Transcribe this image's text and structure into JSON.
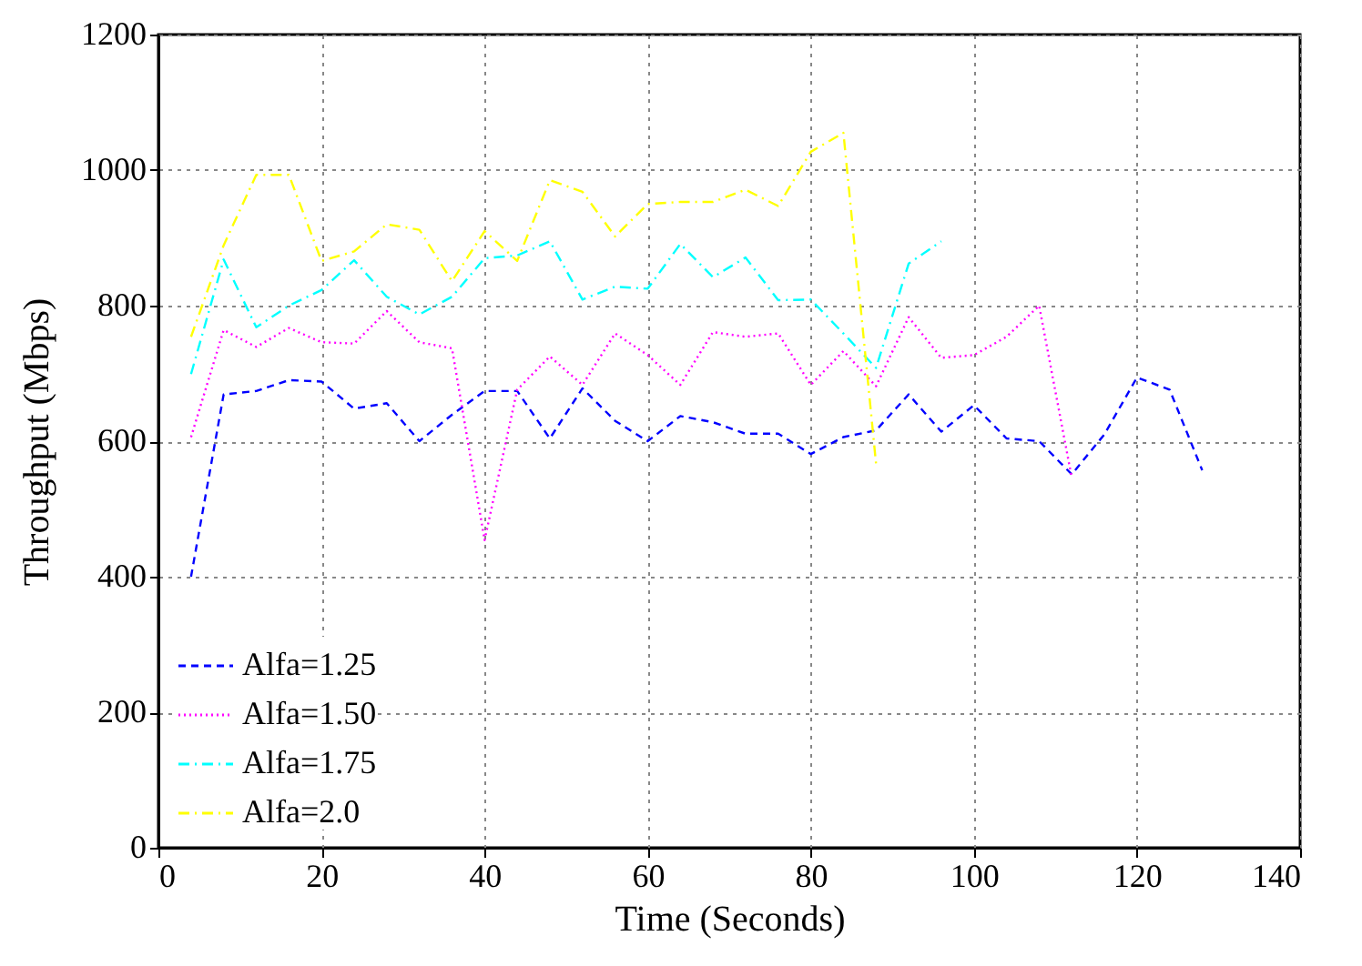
{
  "chart_data": {
    "type": "line",
    "xlabel": "Time (Seconds)",
    "ylabel": "Throughput (Mbps)",
    "xlim": [
      0,
      140
    ],
    "xticks": [
      0,
      20,
      40,
      60,
      80,
      100,
      120,
      140
    ],
    "ylim": [
      0,
      1200
    ],
    "yticks": [
      0,
      200,
      400,
      600,
      800,
      1000,
      1200
    ],
    "grid": true,
    "legend": "bottom left",
    "marker": "none",
    "series": [
      {
        "name": "Alfa=1.25",
        "color": "#0000ff",
        "line_style": "dashed",
        "x": [
          4,
          8,
          12,
          16,
          20,
          24,
          28,
          32,
          36,
          40,
          44,
          48,
          52,
          56,
          60,
          64,
          68,
          72,
          76,
          80,
          84,
          88,
          92,
          96,
          100,
          104,
          108,
          112,
          116,
          120,
          124,
          128
        ],
        "values": [
          400,
          669,
          674,
          690,
          688,
          648,
          656,
          600,
          639,
          674,
          674,
          604,
          678,
          630,
          600,
          637,
          628,
          611,
          611,
          581,
          606,
          616,
          669,
          614,
          653,
          604,
          600,
          551,
          610,
          694,
          676,
          557
        ]
      },
      {
        "name": "Alfa=1.50",
        "color": "#ff00ff",
        "line_style": "dotted",
        "x": [
          4,
          8,
          12,
          16,
          20,
          24,
          28,
          32,
          36,
          40,
          44,
          48,
          52,
          56,
          60,
          64,
          68,
          72,
          76,
          80,
          84,
          88,
          92,
          96,
          100,
          104,
          108,
          112
        ],
        "values": [
          606,
          764,
          739,
          767,
          746,
          744,
          792,
          746,
          737,
          454,
          676,
          725,
          683,
          759,
          727,
          683,
          761,
          754,
          759,
          683,
          733,
          681,
          783,
          723,
          727,
          754,
          800,
          546
        ]
      },
      {
        "name": "Alfa=1.75",
        "color": "#00ffff",
        "line_style": "dashdot",
        "x": [
          4,
          8,
          12,
          16,
          20,
          24,
          28,
          32,
          36,
          40,
          44,
          48,
          52,
          56,
          60,
          64,
          68,
          72,
          76,
          80,
          84,
          88,
          92,
          96
        ],
        "values": [
          699,
          868,
          768,
          800,
          823,
          867,
          813,
          787,
          813,
          870,
          874,
          895,
          809,
          828,
          825,
          891,
          842,
          871,
          808,
          809,
          759,
          708,
          862,
          895
        ]
      },
      {
        "name": "Alfa=2.0",
        "color": "#ffff00",
        "line_style": "dashdot",
        "x": [
          4,
          8,
          12,
          16,
          20,
          24,
          28,
          32,
          36,
          40,
          44,
          48,
          52,
          56,
          60,
          64,
          68,
          72,
          76,
          80,
          84,
          88
        ],
        "values": [
          754,
          889,
          993,
          993,
          866,
          880,
          920,
          912,
          836,
          910,
          866,
          985,
          968,
          902,
          950,
          953,
          953,
          971,
          947,
          1027,
          1055,
          567
        ]
      }
    ]
  }
}
